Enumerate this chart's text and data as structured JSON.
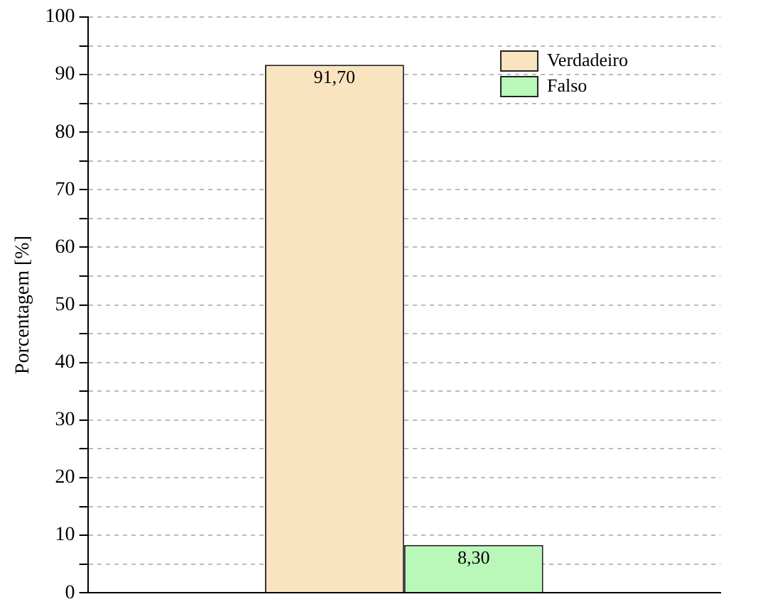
{
  "chart_data": {
    "type": "bar",
    "ylabel": "Porcentagem [%]",
    "categories": [
      null
    ],
    "series": [
      {
        "name": "Verdadeiro",
        "color": "#fae3bf",
        "values": [
          91.7
        ],
        "value_labels": [
          "91,70"
        ]
      },
      {
        "name": "Falso",
        "color": "#b9f8b9",
        "values": [
          8.3
        ],
        "value_labels": [
          "8,30"
        ]
      }
    ],
    "ylim": [
      0,
      100
    ],
    "yticks": [
      0,
      {
        "value": 5,
        "label": null
      },
      10,
      {
        "value": 15,
        "label": null
      },
      20,
      {
        "value": 25,
        "label": null
      },
      30,
      {
        "value": 35,
        "label": null
      },
      40,
      {
        "value": 45,
        "label": null
      },
      50,
      {
        "value": 55,
        "label": null
      },
      60,
      {
        "value": 65,
        "label": null
      },
      70,
      {
        "value": 75,
        "label": null
      },
      80,
      {
        "value": 85,
        "label": null
      },
      90,
      {
        "value": 95,
        "label": null
      },
      100
    ],
    "grid": "y",
    "legend": "top right",
    "tick_labels": "y"
  }
}
